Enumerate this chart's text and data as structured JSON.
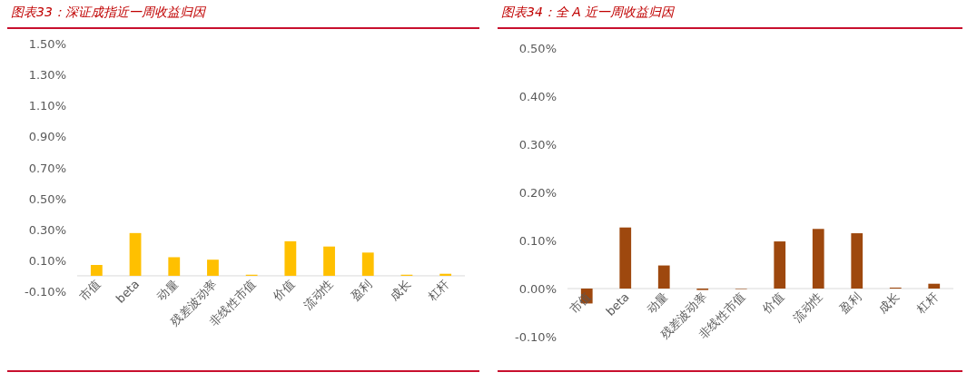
{
  "chart_data": [
    {
      "type": "bar",
      "title": "图表33：深证成指近一周收益归因",
      "categories": [
        "市值",
        "beta",
        "动量",
        "残差波动率",
        "非线性市值",
        "价值",
        "流动性",
        "盈利",
        "成长",
        "杠杆"
      ],
      "values": [
        0.07,
        0.276,
        0.12,
        0.104,
        0.007,
        0.223,
        0.189,
        0.15,
        0.007,
        0.013
      ],
      "color": "#ffc000",
      "ylim": [
        -0.1,
        1.5
      ],
      "yticks": [
        {
          "value": -0.1,
          "label": "-0.10%"
        },
        {
          "value": 0.1,
          "label": "0.10%"
        },
        {
          "value": 0.3,
          "label": "0.30%"
        },
        {
          "value": 0.5,
          "label": "0.50%"
        },
        {
          "value": 0.7,
          "label": "0.70%"
        },
        {
          "value": 0.9,
          "label": "0.90%"
        },
        {
          "value": 1.1,
          "label": "1.10%"
        },
        {
          "value": 1.3,
          "label": "1.30%"
        },
        {
          "value": 1.5,
          "label": "1.50%"
        }
      ],
      "grid": false
    },
    {
      "type": "bar",
      "title": "图表34：全 A 近一周收益归因",
      "categories": [
        "市值",
        "beta",
        "动量",
        "残差波动率",
        "非线性市值",
        "价值",
        "流动性",
        "盈利",
        "成长",
        "杠杆"
      ],
      "values": [
        -0.031,
        0.127,
        0.048,
        -0.003,
        -0.001,
        0.098,
        0.124,
        0.115,
        0.002,
        0.01
      ],
      "color": "#9e480e",
      "ylim": [
        -0.1,
        0.5
      ],
      "yticks": [
        {
          "value": -0.1,
          "label": "-0.10%"
        },
        {
          "value": 0.0,
          "label": "0.00%"
        },
        {
          "value": 0.1,
          "label": "0.10%"
        },
        {
          "value": 0.2,
          "label": "0.20%"
        },
        {
          "value": 0.3,
          "label": "0.30%"
        },
        {
          "value": 0.4,
          "label": "0.40%"
        },
        {
          "value": 0.5,
          "label": "0.50%"
        }
      ],
      "grid": false
    }
  ]
}
